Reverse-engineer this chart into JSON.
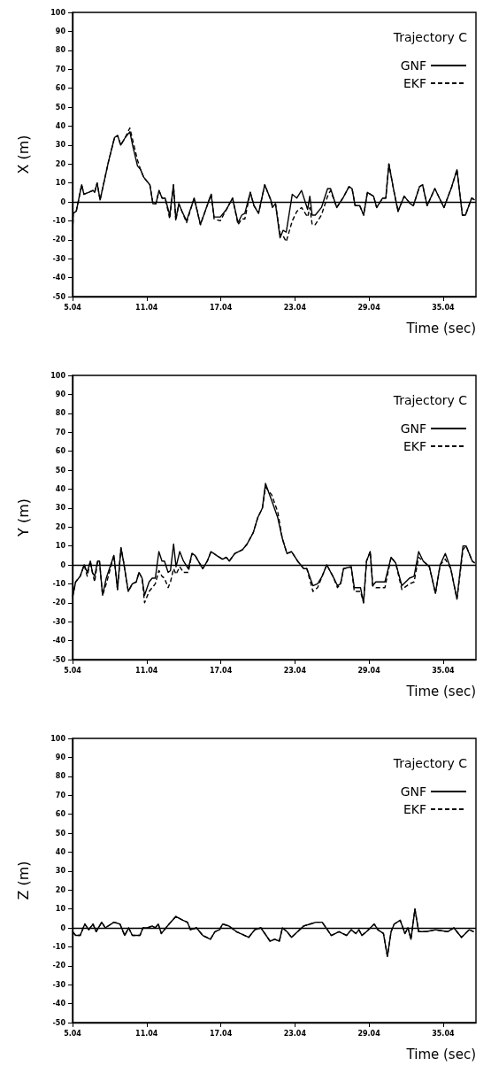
{
  "chart_data": [
    {
      "type": "line",
      "ylabel": "X (m)",
      "xlabel": "Time (sec)",
      "legend_title": "Trajectory C",
      "legend": "top right",
      "grid": false,
      "xlim": [
        5.04,
        37.7
      ],
      "xticks": [
        5.04,
        11.04,
        17.04,
        23.04,
        29.04,
        35.04
      ],
      "ylim": [
        -50,
        100
      ],
      "yticks": [
        -50,
        -40,
        -30,
        -20,
        -10,
        0,
        10,
        20,
        30,
        40,
        50,
        60,
        70,
        80,
        90,
        100
      ],
      "ref_lines": [
        {
          "axis": "y",
          "value": 0,
          "color": "#000000"
        }
      ],
      "x": [
        5.04,
        5.09,
        5.34,
        5.78,
        5.96,
        6.33,
        6.7,
        6.83,
        7.03,
        7.27,
        7.94,
        8.44,
        8.69,
        8.94,
        9.31,
        9.68,
        9.93,
        10.3,
        10.55,
        10.8,
        11.3,
        11.55,
        11.79,
        12.04,
        12.29,
        12.54,
        12.91,
        13.21,
        13.4,
        13.65,
        13.9,
        14.27,
        14.89,
        15.39,
        16.26,
        16.5,
        17.0,
        17.5,
        17.99,
        18.44,
        18.74,
        18.99,
        19.43,
        19.73,
        20.1,
        20.6,
        21.09,
        21.22,
        21.47,
        21.84,
        22.09,
        22.34,
        22.83,
        23.2,
        23.58,
        24.07,
        24.25,
        24.44,
        24.69,
        25.19,
        25.69,
        25.93,
        26.43,
        26.93,
        27.42,
        27.67,
        27.92,
        28.29,
        28.61,
        28.91,
        29.41,
        29.66,
        30.15,
        30.4,
        30.65,
        31.02,
        31.39,
        31.89,
        32.39,
        32.63,
        33.13,
        33.38,
        33.75,
        34.37,
        34.74,
        35.11,
        35.74,
        36.16,
        36.6,
        36.85,
        37.35,
        37.6
      ],
      "series": [
        {
          "name": "GNF",
          "color": "#000000",
          "line_style": "solid",
          "values": [
            -19,
            -6,
            -5,
            9,
            4,
            5,
            6,
            5,
            10,
            1,
            21,
            34,
            35,
            30,
            34,
            37,
            29,
            19,
            17,
            13,
            9,
            -1,
            -1,
            6,
            2,
            2,
            -7,
            9,
            -9,
            -1,
            -5,
            -10,
            2,
            -12,
            4,
            -8,
            -8,
            -4,
            2,
            -11,
            -7,
            -6,
            5,
            -2,
            -6,
            9,
            1,
            -3,
            -1,
            -19,
            -15,
            -16,
            4,
            2,
            6,
            -4,
            3,
            -7,
            -7,
            -3,
            7,
            7,
            -3,
            2,
            8,
            7,
            -2,
            -2,
            -7,
            5,
            3,
            -3,
            2,
            2,
            20,
            7,
            -5,
            3,
            -1,
            -2,
            8,
            9,
            -2,
            7,
            2,
            -3,
            8,
            17,
            -7,
            -7,
            2,
            1
          ]
        },
        {
          "name": "EKF",
          "color": "#000000",
          "line_style": "dashed",
          "values": [
            -19,
            -6,
            -5,
            9,
            4,
            5,
            6,
            5,
            10,
            1,
            21,
            34,
            35,
            30,
            34,
            39,
            32,
            22,
            17,
            13,
            9,
            -1,
            -1,
            6,
            2,
            2,
            -9,
            9,
            -10,
            -1,
            -5,
            -11,
            2,
            -12,
            4,
            -9,
            -10,
            -4,
            2,
            -12,
            -9,
            -9,
            5,
            -2,
            -6,
            9,
            1,
            -2,
            -1,
            -17,
            -18,
            -21,
            -10,
            -5,
            -3,
            -8,
            -3,
            -12,
            -12,
            -7,
            3,
            6,
            -3,
            2,
            8,
            7,
            -2,
            -2,
            -7,
            5,
            3,
            -3,
            2,
            2,
            20,
            7,
            -5,
            3,
            -1,
            -2,
            8,
            9,
            -2,
            7,
            2,
            -3,
            8,
            17,
            -7,
            -7,
            2,
            1
          ]
        }
      ]
    },
    {
      "type": "line",
      "ylabel": "Y (m)",
      "xlabel": "Time (sec)",
      "legend_title": "Trajectory C",
      "legend": "top right",
      "grid": false,
      "xlim": [
        5.04,
        37.7
      ],
      "xticks": [
        5.04,
        11.04,
        17.04,
        23.04,
        29.04,
        35.04
      ],
      "ylim": [
        -50,
        100
      ],
      "yticks": [
        -50,
        -40,
        -30,
        -20,
        -10,
        0,
        10,
        20,
        30,
        40,
        50,
        60,
        70,
        80,
        90,
        100
      ],
      "ref_lines": [
        {
          "axis": "y",
          "value": 0,
          "color": "#000000"
        }
      ],
      "x": [
        5.04,
        5.29,
        5.66,
        5.98,
        6.23,
        6.48,
        6.65,
        6.83,
        7.07,
        7.22,
        7.47,
        7.77,
        8.39,
        8.68,
        8.96,
        9.16,
        9.55,
        9.88,
        10.2,
        10.42,
        10.67,
        10.87,
        11.24,
        11.49,
        11.74,
        12.03,
        12.28,
        12.48,
        12.78,
        12.97,
        13.22,
        13.42,
        13.72,
        14.02,
        14.41,
        14.71,
        14.96,
        15.58,
        15.95,
        16.25,
        16.69,
        17.19,
        17.49,
        17.73,
        18.18,
        18.8,
        19.17,
        19.67,
        20.04,
        20.41,
        20.66,
        21.16,
        21.65,
        22.02,
        22.4,
        22.77,
        23.26,
        23.76,
        24.01,
        24.5,
        24.88,
        25.25,
        25.62,
        26.12,
        26.49,
        26.74,
        26.98,
        27.6,
        27.85,
        28.35,
        28.6,
        28.84,
        29.14,
        29.34,
        29.59,
        30.33,
        30.83,
        31.2,
        31.7,
        32.32,
        32.69,
        33.06,
        33.43,
        33.93,
        34.42,
        34.8,
        35.22,
        35.66,
        36.16,
        36.65,
        36.9,
        37.4,
        37.6
      ],
      "series": [
        {
          "name": "GNF",
          "color": "#000000",
          "line_style": "solid",
          "values": [
            -17,
            -9,
            -6,
            0,
            -4,
            2,
            -4,
            -6,
            2,
            2,
            -16,
            -7,
            5,
            -13,
            9,
            2,
            -14,
            -10,
            -9,
            -4,
            -7,
            -16,
            -9,
            -7,
            -7,
            7,
            2,
            2,
            -4,
            -3,
            11,
            -1,
            7,
            2,
            -2,
            6,
            5,
            -2,
            2,
            7,
            5,
            3,
            4,
            2,
            6,
            8,
            11,
            17,
            25,
            30,
            43,
            34,
            25,
            14,
            6,
            7,
            2,
            -2,
            -2,
            -11,
            -10,
            -6,
            0,
            -6,
            -11,
            -10,
            -2,
            -1,
            -12,
            -12,
            -20,
            2,
            7,
            -11,
            -9,
            -9,
            4,
            1,
            -11,
            -7,
            -6,
            7,
            2,
            -1,
            -15,
            0,
            6,
            -2,
            -18,
            10,
            10,
            2,
            1
          ]
        },
        {
          "name": "EKF",
          "color": "#000000",
          "line_style": "dashed",
          "values": [
            -17,
            -9,
            -6,
            0,
            -6,
            2,
            -4,
            -9,
            2,
            2,
            -16,
            -10,
            5,
            -13,
            9,
            2,
            -14,
            -10,
            -9,
            -4,
            -7,
            -20,
            -14,
            -12,
            -10,
            -3,
            -6,
            -7,
            -12,
            -9,
            -2,
            -5,
            -1,
            -4,
            -4,
            6,
            5,
            -2,
            2,
            7,
            5,
            3,
            4,
            2,
            6,
            8,
            11,
            17,
            25,
            30,
            41,
            37,
            28,
            14,
            6,
            7,
            2,
            -2,
            -2,
            -14,
            -12,
            -6,
            0,
            -6,
            -12,
            -10,
            -2,
            -1,
            -14,
            -14,
            -20,
            2,
            7,
            -11,
            -12,
            -12,
            4,
            1,
            -13,
            -10,
            -9,
            4,
            2,
            -1,
            -15,
            0,
            3,
            -2,
            -18,
            8,
            10,
            2,
            1
          ]
        }
      ]
    },
    {
      "type": "line",
      "ylabel": "Z (m)",
      "xlabel": "Time (sec)",
      "legend_title": "Trajectory C",
      "legend": "top right",
      "grid": false,
      "xlim": [
        5.04,
        37.7
      ],
      "xticks": [
        5.04,
        11.04,
        17.04,
        23.04,
        29.04,
        35.04
      ],
      "ylim": [
        -50,
        100
      ],
      "yticks": [
        -50,
        -40,
        -30,
        -20,
        -10,
        0,
        10,
        20,
        30,
        40,
        50,
        60,
        70,
        80,
        90,
        100
      ],
      "ref_lines": [
        {
          "axis": "y",
          "value": 0,
          "color": "#000000"
        }
      ],
      "x": [
        5.04,
        5.29,
        5.66,
        6.03,
        6.35,
        6.7,
        6.95,
        7.4,
        7.69,
        8.39,
        8.88,
        9.26,
        9.58,
        9.88,
        10.5,
        10.74,
        11.11,
        11.49,
        11.73,
        11.98,
        12.23,
        12.6,
        12.85,
        13.4,
        13.97,
        14.34,
        14.59,
        15.08,
        15.58,
        16.2,
        16.57,
        16.94,
        17.19,
        17.69,
        18.31,
        19.3,
        19.79,
        20.29,
        21.03,
        21.41,
        21.78,
        22.03,
        22.4,
        22.77,
        23.26,
        23.76,
        24.26,
        24.75,
        25.25,
        25.99,
        26.61,
        27.23,
        27.6,
        27.98,
        28.22,
        28.47,
        28.84,
        29.46,
        29.76,
        30.21,
        30.53,
        30.83,
        31.08,
        31.57,
        31.95,
        32.19,
        32.44,
        32.76,
        33.06,
        33.68,
        34.42,
        35.41,
        35.91,
        36.53,
        37.15,
        37.52
      ],
      "series": [
        {
          "name": "GNF",
          "color": "#000000",
          "line_style": "solid",
          "values": [
            -2,
            -4,
            -4,
            2,
            -1,
            2,
            -2,
            3,
            0,
            3,
            2,
            -4,
            0,
            -4,
            -4,
            0,
            0,
            1,
            0,
            2,
            -3,
            0,
            2,
            6,
            4,
            3,
            -1,
            0,
            -4,
            -6,
            -2,
            -1,
            2,
            1,
            -2,
            -5,
            -1,
            0,
            -7,
            -6,
            -7,
            0,
            -2,
            -5,
            -2,
            1,
            2,
            3,
            3,
            -4,
            -2,
            -4,
            -1,
            -3,
            -1,
            -4,
            -2,
            2,
            -1,
            -3,
            -15,
            -2,
            2,
            4,
            -3,
            0,
            -6,
            10,
            -2,
            -2,
            -1,
            -2,
            0,
            -5,
            -1,
            -2
          ]
        },
        {
          "name": "EKF",
          "color": "#000000",
          "line_style": "dashed",
          "values": [
            -2,
            -4,
            -4,
            2,
            -1,
            2,
            -2,
            3,
            0,
            3,
            2,
            -4,
            0,
            -4,
            -4,
            0,
            0,
            1,
            0,
            2,
            -3,
            0,
            2,
            6,
            4,
            3,
            -1,
            0,
            -4,
            -6,
            -2,
            -1,
            2,
            1,
            -2,
            -5,
            -1,
            0,
            -7,
            -6,
            -7,
            0,
            -2,
            -5,
            -2,
            1,
            2,
            3,
            3,
            -4,
            -2,
            -4,
            -1,
            -3,
            -1,
            -4,
            -2,
            2,
            -1,
            -3,
            -15,
            -2,
            2,
            4,
            -3,
            0,
            -6,
            10,
            -2,
            -2,
            -1,
            -2,
            0,
            -5,
            -1,
            -2
          ]
        }
      ]
    }
  ]
}
